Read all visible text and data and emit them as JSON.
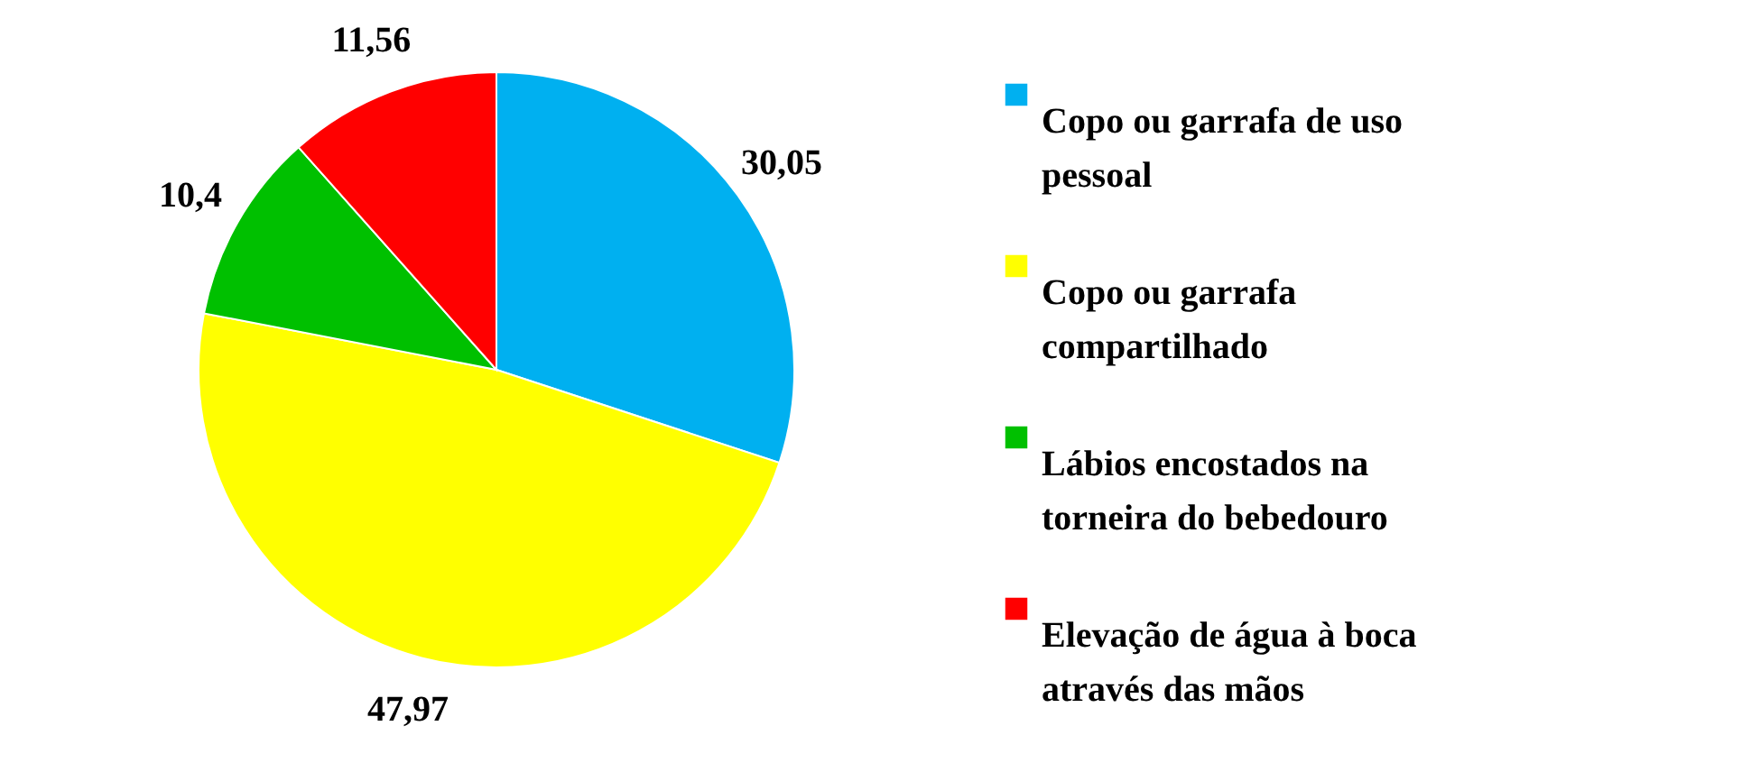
{
  "chart_data": {
    "type": "pie",
    "categories": [
      "Copo ou garrafa de uso pessoal",
      "Copo ou garrafa compartilhado",
      "Lábios encostados na torneira do bebedouro",
      "Elevação de água à boca através das mãos"
    ],
    "values": [
      30.05,
      47.97,
      10.4,
      11.56
    ],
    "value_labels": [
      "30,05",
      "47,97",
      "10,4",
      "11,56"
    ],
    "colors": [
      "#00b0f0",
      "#ffff00",
      "#00c000",
      "#ff0000"
    ],
    "legend": "right"
  }
}
